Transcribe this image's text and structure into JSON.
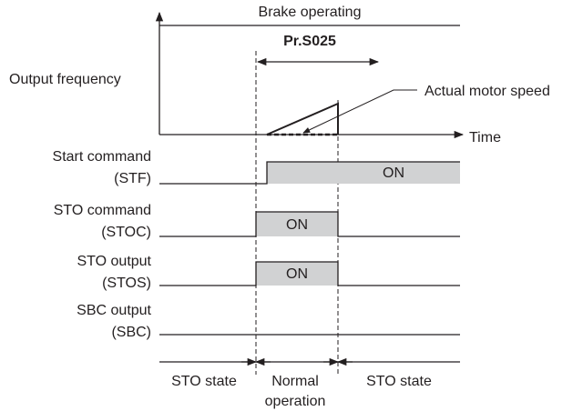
{
  "brake_label": "Brake operating",
  "frequency_label": "Output frequency",
  "time_label": "Time",
  "parameter": "Pr.S025",
  "annotation": "Actual motor speed",
  "signals": [
    {
      "name": "Start command",
      "code": "(STF)",
      "state": "ON"
    },
    {
      "name": "STO command",
      "code": "(STOC)",
      "state": "ON"
    },
    {
      "name": "STO output",
      "code": "(STOS)",
      "state": "ON"
    },
    {
      "name": "SBC output",
      "code": "(SBC)"
    }
  ],
  "states": [
    {
      "lines": [
        "STO state"
      ]
    },
    {
      "lines": [
        "Normal",
        "operation"
      ]
    },
    {
      "lines": [
        "STO state"
      ]
    }
  ]
}
